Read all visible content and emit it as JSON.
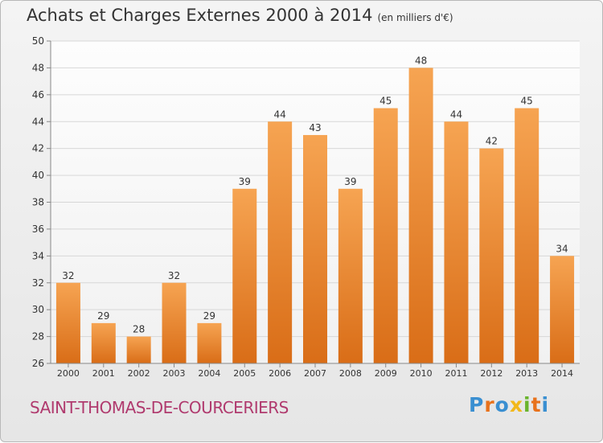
{
  "header": {
    "title": "Achats et Charges Externes 2000 à 2014",
    "subtitle": "(en milliers d'€)"
  },
  "footer": {
    "commune": "SAINT-THOMAS-DE-COURCERIERS",
    "logo_letters": [
      "P",
      "r",
      "o",
      "x",
      "i",
      "t",
      "i"
    ],
    "logo_colors": [
      "#3a8fd1",
      "#e8721c",
      "#3a8fd1",
      "#f2b81a",
      "#6ab42d",
      "#e8721c",
      "#3a8fd1"
    ]
  },
  "colors": {
    "bar_top": "#f6a452",
    "bar_bottom": "#d96d17",
    "grid": "#d7d7d7",
    "axis": "#888888",
    "text": "#333333"
  },
  "chart_data": {
    "type": "bar",
    "categories": [
      "2000",
      "2001",
      "2002",
      "2003",
      "2004",
      "2005",
      "2006",
      "2007",
      "2008",
      "2009",
      "2010",
      "2011",
      "2012",
      "2013",
      "2014"
    ],
    "values": [
      32,
      29,
      28,
      32,
      29,
      39,
      44,
      43,
      39,
      45,
      48,
      44,
      42,
      45,
      34
    ],
    "ylim": [
      26,
      50
    ],
    "yticks": [
      26,
      28,
      30,
      32,
      34,
      36,
      38,
      40,
      42,
      44,
      46,
      48,
      50
    ],
    "grid": true,
    "legend": "none"
  }
}
